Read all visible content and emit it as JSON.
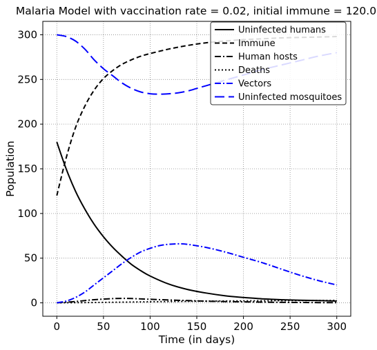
{
  "chart_data": {
    "type": "line",
    "title": "Malaria Model with vaccination rate = 0.02, initial immune = 120.0",
    "xlabel": "Time (in days)",
    "ylabel": "Population",
    "xlim": [
      -15,
      315
    ],
    "ylim": [
      -15,
      315
    ],
    "xticks": [
      0,
      50,
      100,
      150,
      200,
      250,
      300
    ],
    "yticks": [
      0,
      50,
      100,
      150,
      200,
      250,
      300
    ],
    "grid": true,
    "legend_position": "top-right",
    "series": [
      {
        "name": "Uninfected humans",
        "color": "#000000",
        "style": "solid",
        "x": [
          0,
          10,
          20,
          30,
          40,
          50,
          60,
          70,
          80,
          90,
          100,
          120,
          140,
          160,
          180,
          200,
          220,
          240,
          260,
          280,
          300
        ],
        "y": [
          180,
          150,
          125,
          105,
          88,
          74,
          62,
          52,
          43,
          36,
          30,
          21,
          15,
          11,
          8,
          6,
          4.5,
          3.5,
          3,
          2.5,
          2
        ]
      },
      {
        "name": "Immune",
        "color": "#000000",
        "style": "dashed",
        "x": [
          0,
          10,
          20,
          30,
          40,
          50,
          60,
          70,
          80,
          90,
          100,
          120,
          140,
          160,
          180,
          200,
          220,
          240,
          260,
          280,
          300
        ],
        "y": [
          120,
          162,
          196,
          220,
          238,
          251,
          260,
          267,
          272,
          276,
          279,
          284,
          288,
          291,
          293,
          294.5,
          295.5,
          296.5,
          297,
          297.5,
          298
        ]
      },
      {
        "name": "Human hosts",
        "color": "#000000",
        "style": "dashdot",
        "x": [
          0,
          20,
          40,
          60,
          70,
          80,
          100,
          120,
          140,
          160,
          180,
          200,
          220,
          240,
          260,
          280,
          300
        ],
        "y": [
          0,
          1.5,
          3.5,
          4.7,
          5,
          4.8,
          4,
          3.2,
          2.5,
          1.9,
          1.4,
          1.1,
          0.8,
          0.6,
          0.4,
          0.3,
          0.2
        ]
      },
      {
        "name": "Deaths",
        "color": "#000000",
        "style": "dotted",
        "x": [
          0,
          50,
          100,
          150,
          200,
          250,
          300
        ],
        "y": [
          0,
          0.5,
          1.2,
          1.8,
          2.2,
          2.5,
          2.7
        ]
      },
      {
        "name": "Vectors",
        "color": "#0000ff",
        "style": "dashdot",
        "x": [
          0,
          10,
          20,
          30,
          40,
          50,
          60,
          70,
          80,
          90,
          100,
          110,
          120,
          130,
          140,
          160,
          180,
          200,
          220,
          240,
          260,
          280,
          300
        ],
        "y": [
          0,
          2,
          6,
          12,
          20,
          28,
          36,
          44,
          51,
          57,
          61,
          64,
          65.5,
          66,
          65.5,
          62,
          57,
          51,
          45,
          38,
          31,
          25,
          20
        ]
      },
      {
        "name": "Uninfected mosquitoes",
        "color": "#0000ff",
        "style": "longdash",
        "x": [
          0,
          10,
          20,
          30,
          40,
          50,
          60,
          70,
          80,
          90,
          100,
          110,
          120,
          130,
          140,
          150,
          160,
          180,
          200,
          220,
          240,
          260,
          280,
          300
        ],
        "y": [
          300,
          298,
          293,
          284,
          272,
          262,
          254,
          246,
          240,
          236,
          234,
          233.5,
          234,
          235,
          237,
          240,
          243,
          249,
          255,
          261,
          266,
          271,
          276,
          280
        ]
      }
    ]
  }
}
